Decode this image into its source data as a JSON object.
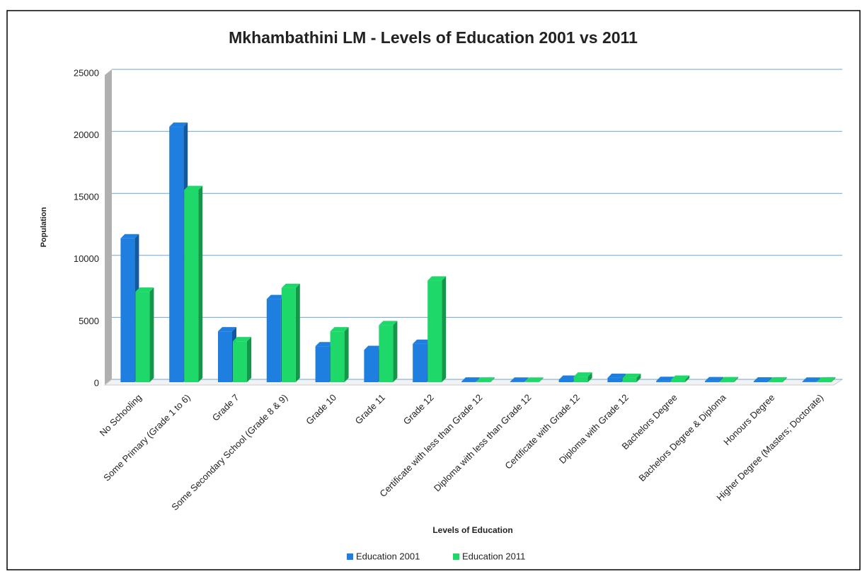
{
  "chart_data": {
    "type": "bar",
    "title": "Mkhambathini LM - Levels of Education 2001 vs 2011",
    "x_label": "Levels of Education",
    "y_label": "Population",
    "categories": [
      "No Schooling",
      "Some Primary (Grade 1 to 6)",
      "Grade 7",
      "Some Secondary School (Grade 8 & 9)",
      "Grade 10",
      "Grade 11",
      "Grade 12",
      "Certificate with less than Grade 12",
      "Diploma with less than Grade 12",
      "Certificate with Grade 12",
      "Diploma with Grade 12",
      "Bachelors Degree",
      "Bachelors Degree & Diploma",
      "Honours Degree",
      "Higher Degree (Masters; Doctorate)"
    ],
    "series": [
      {
        "name": "Education 2001",
        "color": "#1e7fe0",
        "values": [
          11600,
          20600,
          4100,
          6700,
          2900,
          2600,
          3100,
          50,
          40,
          200,
          350,
          100,
          80,
          60,
          40
        ]
      },
      {
        "name": "Education 2011",
        "color": "#1ed86a",
        "values": [
          7300,
          15500,
          3300,
          7600,
          4100,
          4600,
          8200,
          50,
          40,
          450,
          350,
          200,
          80,
          60,
          60
        ]
      }
    ],
    "ylim": [
      0,
      25000
    ],
    "yticks": [
      0,
      5000,
      10000,
      15000,
      20000,
      25000
    ],
    "grid": true,
    "legend": "bottom"
  }
}
